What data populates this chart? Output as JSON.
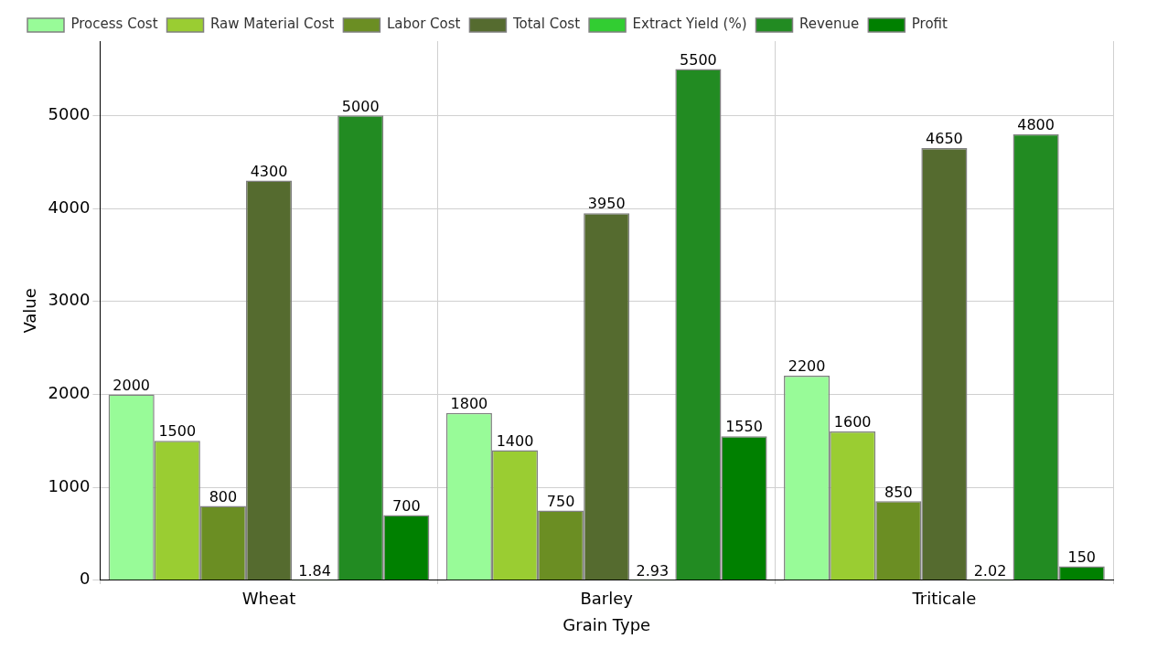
{
  "chart_data": {
    "type": "bar",
    "xlabel": "Grain Type",
    "ylabel": "Value",
    "categories": [
      "Wheat",
      "Barley",
      "Triticale"
    ],
    "series": [
      {
        "name": "Process Cost",
        "color": "#98fb98",
        "values": [
          2000,
          1800,
          2200
        ]
      },
      {
        "name": "Raw Material Cost",
        "color": "#9acd32",
        "values": [
          1500,
          1400,
          1600
        ]
      },
      {
        "name": "Labor Cost",
        "color": "#6b8e23",
        "values": [
          800,
          750,
          850
        ]
      },
      {
        "name": "Total Cost",
        "color": "#556b2f",
        "values": [
          4300,
          3950,
          4650
        ]
      },
      {
        "name": "Extract Yield (%)",
        "color": "#32cd32",
        "values": [
          1.84,
          2.93,
          2.02
        ]
      },
      {
        "name": "Revenue",
        "color": "#228b22",
        "values": [
          5000,
          5500,
          4800
        ]
      },
      {
        "name": "Profit",
        "color": "#008000",
        "values": [
          700,
          1550,
          150
        ]
      }
    ],
    "ylim": [
      0,
      5800
    ],
    "yticks": [
      0,
      1000,
      2000,
      3000,
      4000,
      5000
    ],
    "grid": true,
    "legend": "top left",
    "data_labels": true
  }
}
